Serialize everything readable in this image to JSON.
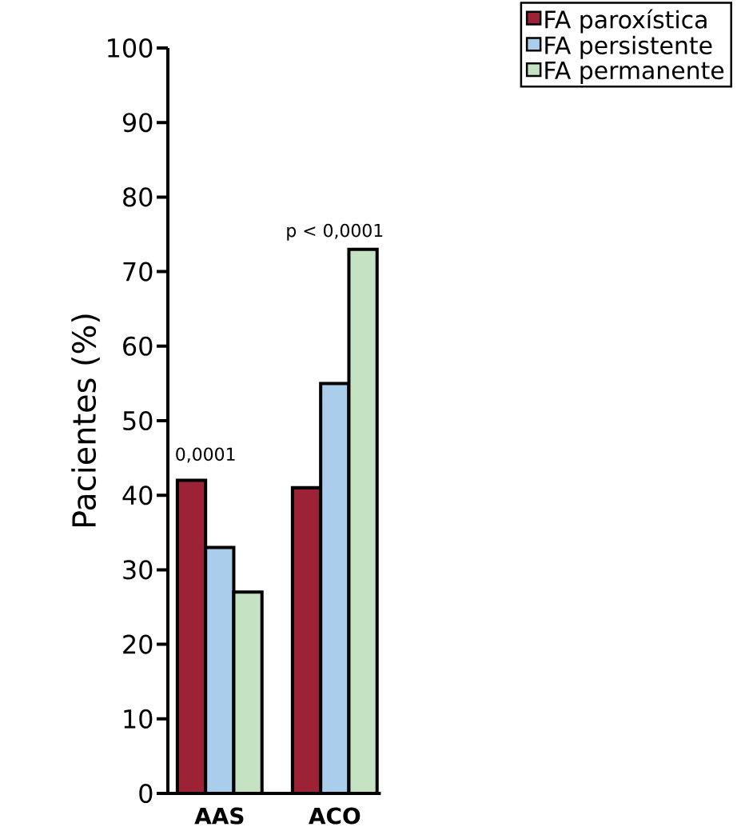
{
  "chart_data": {
    "type": "bar",
    "ylabel": "Pacientes (%)",
    "categories": [
      "AAS",
      "ACO"
    ],
    "series": [
      {
        "name": "FA paroxística",
        "color": "#9b2335",
        "values": [
          42,
          41
        ]
      },
      {
        "name": "FA persistente",
        "color": "#aacdeb",
        "values": [
          33,
          55
        ]
      },
      {
        "name": "FA permanente",
        "color": "#c5e3c3",
        "values": [
          27,
          73
        ]
      }
    ],
    "ylim": [
      0,
      100
    ],
    "yticks": [
      0,
      10,
      20,
      30,
      40,
      50,
      60,
      70,
      80,
      90,
      100
    ],
    "annotations": [
      "0,0001",
      "p < 0,0001"
    ],
    "legend": "top right",
    "grid": false
  }
}
